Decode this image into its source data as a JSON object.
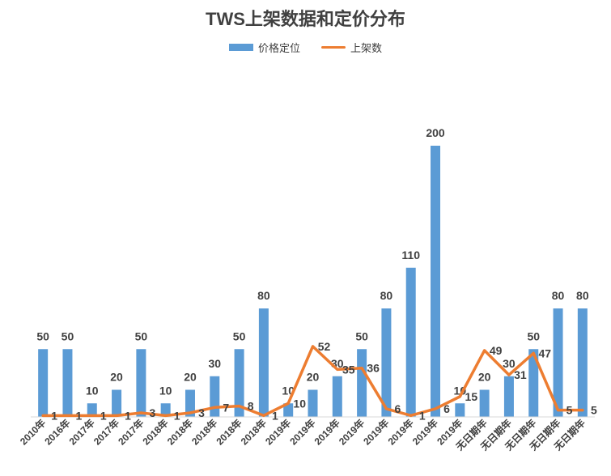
{
  "chart_data": {
    "type": "bar",
    "title": "TWS上架数据和定价分布",
    "legend_position": "top",
    "grid": false,
    "categories": [
      "2010年",
      "2016年",
      "2017年",
      "2017年",
      "2017年",
      "2018年",
      "2018年",
      "2018年",
      "2018年",
      "2018年",
      "2019年",
      "2019年",
      "2019年",
      "2019年",
      "2019年",
      "2019年",
      "2019年",
      "2019年",
      "无日期年",
      "无日期年",
      "无日期年",
      "无日期年",
      "无日期年"
    ],
    "series": [
      {
        "name": "价格定位",
        "type": "bar",
        "color": "#5B9BD5",
        "values": [
          50,
          50,
          10,
          20,
          50,
          10,
          20,
          30,
          50,
          80,
          10,
          20,
          30,
          50,
          80,
          110,
          200,
          10,
          20,
          30,
          50,
          80,
          80
        ]
      },
      {
        "name": "上架数",
        "type": "line",
        "color": "#ED7D31",
        "values": [
          1,
          1,
          1,
          1,
          3,
          1,
          3,
          7,
          8,
          1,
          10,
          52,
          35,
          36,
          6,
          1,
          6,
          15,
          49,
          31,
          47,
          5,
          5
        ]
      }
    ],
    "ylim": [
      0,
      200
    ]
  }
}
